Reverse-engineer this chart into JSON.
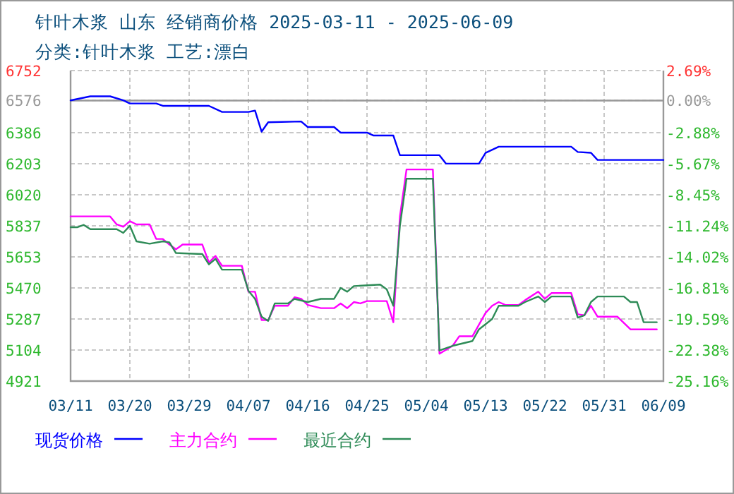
{
  "chart_data": {
    "type": "line",
    "title": "针叶木浆 山东 经销商价格 2025-03-11 - 2025-06-09",
    "subtitle": "分类:针叶木浆 工艺:漂白",
    "xlim": [
      "2025-03-11",
      "2025-06-09"
    ],
    "xticks": [
      {
        "value": "2025-03-11",
        "label": "03/11"
      },
      {
        "value": "2025-03-20",
        "label": "03/20"
      },
      {
        "value": "2025-03-29",
        "label": "03/29"
      },
      {
        "value": "2025-04-07",
        "label": "04/07"
      },
      {
        "value": "2025-04-16",
        "label": "04/16"
      },
      {
        "value": "2025-04-25",
        "label": "04/25"
      },
      {
        "value": "2025-05-04",
        "label": "05/04"
      },
      {
        "value": "2025-05-13",
        "label": "05/13"
      },
      {
        "value": "2025-05-22",
        "label": "05/22"
      },
      {
        "value": "2025-05-31",
        "label": "05/31"
      },
      {
        "value": "2025-06-09",
        "label": "06/09"
      }
    ],
    "ylim": [
      4921,
      6752
    ],
    "yticks": [
      6752,
      6576,
      6386,
      6203,
      6020,
      5837,
      5653,
      5470,
      5287,
      5104,
      4921
    ],
    "y2lim": [
      -25.16,
      2.69
    ],
    "y2ticks": [
      {
        "value": 2.69,
        "label": "2.69%"
      },
      {
        "value": 0,
        "label": "0.00%"
      },
      {
        "value": -2.88,
        "label": "-2.88%"
      },
      {
        "value": -5.67,
        "label": "-5.67%"
      },
      {
        "value": -8.45,
        "label": "-8.45%"
      },
      {
        "value": -11.24,
        "label": "-11.24%"
      },
      {
        "value": -14.02,
        "label": "-14.02%"
      },
      {
        "value": -16.81,
        "label": "-16.81%"
      },
      {
        "value": -19.59,
        "label": "-19.59%"
      },
      {
        "value": -22.38,
        "label": "-22.38%"
      },
      {
        "value": -25.16,
        "label": "-25.16%"
      }
    ],
    "grid": true,
    "legend": "bottom",
    "ref_lines": [
      {
        "axis": "y2",
        "value": 0,
        "color": "#999999"
      }
    ],
    "series": [
      {
        "name": "现货价格",
        "color": "#0000ff",
        "x": [
          "2025-03-11",
          "2025-03-14",
          "2025-03-17",
          "2025-03-19",
          "2025-03-20",
          "2025-03-24",
          "2025-03-25",
          "2025-04-01",
          "2025-04-03",
          "2025-04-07",
          "2025-04-08",
          "2025-04-09",
          "2025-04-10",
          "2025-04-15",
          "2025-04-16",
          "2025-04-20",
          "2025-04-21",
          "2025-04-25",
          "2025-04-26",
          "2025-04-29",
          "2025-04-30",
          "2025-05-06",
          "2025-05-07",
          "2025-05-12",
          "2025-05-13",
          "2025-05-15",
          "2025-05-26",
          "2025-05-27",
          "2025-05-29",
          "2025-05-30",
          "2025-06-09"
        ],
        "values": [
          6576,
          6600,
          6600,
          6577,
          6558,
          6558,
          6544,
          6544,
          6508,
          6508,
          6516,
          6392,
          6447,
          6452,
          6419,
          6419,
          6386,
          6386,
          6369,
          6369,
          6253,
          6253,
          6203,
          6203,
          6267,
          6303,
          6303,
          6272,
          6267,
          6225,
          6225
        ]
      },
      {
        "name": "主力合约",
        "color": "#ff00ff",
        "x": [
          "2025-03-11",
          "2025-03-17",
          "2025-03-18",
          "2025-03-19",
          "2025-03-20",
          "2025-03-21",
          "2025-03-23",
          "2025-03-24",
          "2025-03-25",
          "2025-03-26",
          "2025-03-27",
          "2025-03-28",
          "2025-03-31",
          "2025-04-01",
          "2025-04-02",
          "2025-04-03",
          "2025-04-06",
          "2025-04-07",
          "2025-04-08",
          "2025-04-09",
          "2025-04-10",
          "2025-04-11",
          "2025-04-13",
          "2025-04-14",
          "2025-04-15",
          "2025-04-16",
          "2025-04-18",
          "2025-04-20",
          "2025-04-21",
          "2025-04-22",
          "2025-04-23",
          "2025-04-24",
          "2025-04-25",
          "2025-04-28",
          "2025-04-29",
          "2025-04-30",
          "2025-05-01",
          "2025-05-05",
          "2025-05-06",
          "2025-05-08",
          "2025-05-09",
          "2025-05-11",
          "2025-05-13",
          "2025-05-14",
          "2025-05-15",
          "2025-05-16",
          "2025-05-18",
          "2025-05-19",
          "2025-05-21",
          "2025-05-22",
          "2025-05-23",
          "2025-05-26",
          "2025-05-27",
          "2025-05-28",
          "2025-05-29",
          "2025-05-30",
          "2025-06-02",
          "2025-06-04",
          "2025-06-08"
        ],
        "values": [
          5892,
          5892,
          5845,
          5831,
          5864,
          5845,
          5845,
          5759,
          5759,
          5726,
          5698,
          5726,
          5726,
          5620,
          5659,
          5601,
          5601,
          5448,
          5448,
          5281,
          5281,
          5365,
          5365,
          5415,
          5406,
          5370,
          5351,
          5351,
          5379,
          5351,
          5387,
          5379,
          5393,
          5393,
          5268,
          5892,
          6169,
          6169,
          5082,
          5129,
          5185,
          5185,
          5323,
          5365,
          5387,
          5370,
          5370,
          5398,
          5448,
          5406,
          5440,
          5440,
          5315,
          5309,
          5365,
          5301,
          5301,
          5226,
          5226
        ]
      },
      {
        "name": "最近合约",
        "color": "#2e8b57",
        "x": [
          "2025-03-11",
          "2025-03-12",
          "2025-03-13",
          "2025-03-14",
          "2025-03-18",
          "2025-03-19",
          "2025-03-20",
          "2025-03-21",
          "2025-03-23",
          "2025-03-25",
          "2025-03-26",
          "2025-03-27",
          "2025-03-31",
          "2025-04-01",
          "2025-04-02",
          "2025-04-03",
          "2025-04-06",
          "2025-04-07",
          "2025-04-08",
          "2025-04-09",
          "2025-04-10",
          "2025-04-11",
          "2025-04-13",
          "2025-04-14",
          "2025-04-16",
          "2025-04-18",
          "2025-04-20",
          "2025-04-21",
          "2025-04-22",
          "2025-04-23",
          "2025-04-27",
          "2025-04-28",
          "2025-04-29",
          "2025-04-30",
          "2025-05-01",
          "2025-05-05",
          "2025-05-06",
          "2025-05-08",
          "2025-05-11",
          "2025-05-12",
          "2025-05-14",
          "2025-05-15",
          "2025-05-18",
          "2025-05-19",
          "2025-05-21",
          "2025-05-22",
          "2025-05-23",
          "2025-05-26",
          "2025-05-27",
          "2025-05-28",
          "2025-05-29",
          "2025-05-30",
          "2025-06-03",
          "2025-06-04",
          "2025-06-05",
          "2025-06-06",
          "2025-06-08"
        ],
        "values": [
          5828,
          5828,
          5842,
          5817,
          5817,
          5795,
          5837,
          5745,
          5731,
          5745,
          5739,
          5676,
          5670,
          5609,
          5642,
          5578,
          5578,
          5454,
          5406,
          5301,
          5276,
          5379,
          5379,
          5406,
          5387,
          5406,
          5406,
          5470,
          5448,
          5481,
          5490,
          5462,
          5365,
          5837,
          6114,
          6114,
          5101,
          5129,
          5157,
          5226,
          5287,
          5365,
          5365,
          5387,
          5420,
          5387,
          5420,
          5420,
          5295,
          5309,
          5387,
          5420,
          5420,
          5387,
          5387,
          5268,
          5268
        ]
      }
    ]
  }
}
